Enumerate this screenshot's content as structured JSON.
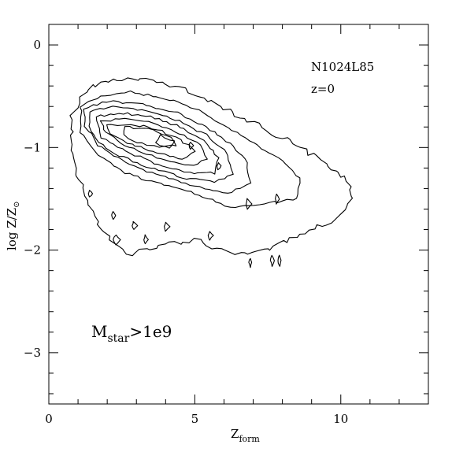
{
  "chart_data": {
    "type": "contour",
    "xlabel_main": "Z",
    "xlabel_sub": "form",
    "ylabel_main": "log  Z/Z",
    "ylabel_symbol": "⊙",
    "xlim": [
      0,
      13
    ],
    "ylim": [
      -3.5,
      0.2
    ],
    "xticks_major": [
      0,
      5,
      10
    ],
    "xtick_labels": [
      "0",
      "5",
      "10"
    ],
    "xticks_minor_step": 1,
    "yticks_major": [
      0,
      -1,
      -2,
      -3
    ],
    "ytick_labels": [
      "0",
      "−1",
      "−2",
      "−3"
    ],
    "yticks_minor_step": 0.2,
    "annotations": {
      "run_name": "N1024L85",
      "redshift": "z=0",
      "mass_main": "M",
      "mass_sub": "star",
      "mass_rest": ">1e9"
    },
    "contours": [
      {
        "level": 1,
        "points": [
          [
            1.0,
            -0.55
          ],
          [
            1.5,
            -0.4
          ],
          [
            2.4,
            -0.33
          ],
          [
            3.5,
            -0.35
          ],
          [
            4.5,
            -0.42
          ],
          [
            5.6,
            -0.55
          ],
          [
            6.7,
            -0.72
          ],
          [
            8.0,
            -0.9
          ],
          [
            9.2,
            -1.1
          ],
          [
            10.2,
            -1.3
          ],
          [
            10.4,
            -1.5
          ],
          [
            9.8,
            -1.7
          ],
          [
            8.6,
            -1.85
          ],
          [
            7.6,
            -1.98
          ],
          [
            6.4,
            -2.05
          ],
          [
            5.0,
            -1.9
          ],
          [
            3.8,
            -1.95
          ],
          [
            2.7,
            -2.05
          ],
          [
            1.8,
            -1.8
          ],
          [
            1.3,
            -1.5
          ],
          [
            0.9,
            -1.2
          ],
          [
            0.75,
            -0.9
          ],
          [
            0.8,
            -0.7
          ]
        ]
      },
      {
        "level": 2,
        "points": [
          [
            1.1,
            -0.6
          ],
          [
            1.8,
            -0.5
          ],
          [
            2.8,
            -0.46
          ],
          [
            4.0,
            -0.52
          ],
          [
            5.0,
            -0.62
          ],
          [
            6.0,
            -0.78
          ],
          [
            7.0,
            -0.96
          ],
          [
            8.0,
            -1.12
          ],
          [
            8.6,
            -1.3
          ],
          [
            8.5,
            -1.5
          ],
          [
            7.4,
            -1.55
          ],
          [
            6.2,
            -1.58
          ],
          [
            5.0,
            -1.45
          ],
          [
            3.8,
            -1.35
          ],
          [
            2.6,
            -1.25
          ],
          [
            1.6,
            -1.05
          ],
          [
            1.1,
            -0.85
          ]
        ]
      },
      {
        "level": 3,
        "points": [
          [
            1.2,
            -0.62
          ],
          [
            2.0,
            -0.55
          ],
          [
            3.2,
            -0.58
          ],
          [
            4.4,
            -0.66
          ],
          [
            5.4,
            -0.8
          ],
          [
            6.2,
            -0.96
          ],
          [
            6.8,
            -1.15
          ],
          [
            6.9,
            -1.35
          ],
          [
            6.1,
            -1.45
          ],
          [
            5.0,
            -1.38
          ],
          [
            3.8,
            -1.28
          ],
          [
            2.6,
            -1.15
          ],
          [
            1.7,
            -0.98
          ],
          [
            1.25,
            -0.8
          ]
        ]
      },
      {
        "level": 4,
        "points": [
          [
            1.4,
            -0.65
          ],
          [
            2.2,
            -0.6
          ],
          [
            3.4,
            -0.64
          ],
          [
            4.5,
            -0.74
          ],
          [
            5.4,
            -0.88
          ],
          [
            6.1,
            -1.05
          ],
          [
            6.3,
            -1.25
          ],
          [
            5.7,
            -1.34
          ],
          [
            4.7,
            -1.3
          ],
          [
            3.5,
            -1.2
          ],
          [
            2.4,
            -1.08
          ],
          [
            1.7,
            -0.94
          ],
          [
            1.4,
            -0.8
          ]
        ]
      },
      {
        "level": 5,
        "points": [
          [
            1.6,
            -0.7
          ],
          [
            2.4,
            -0.66
          ],
          [
            3.5,
            -0.7
          ],
          [
            4.5,
            -0.8
          ],
          [
            5.3,
            -0.94
          ],
          [
            5.8,
            -1.1
          ],
          [
            5.7,
            -1.25
          ],
          [
            4.8,
            -1.25
          ],
          [
            3.6,
            -1.15
          ],
          [
            2.5,
            -1.02
          ],
          [
            1.8,
            -0.9
          ]
        ]
      },
      {
        "level": 6,
        "points": [
          [
            1.8,
            -0.74
          ],
          [
            2.6,
            -0.72
          ],
          [
            3.6,
            -0.76
          ],
          [
            4.5,
            -0.86
          ],
          [
            5.2,
            -0.98
          ],
          [
            5.4,
            -1.12
          ],
          [
            4.8,
            -1.18
          ],
          [
            3.7,
            -1.1
          ],
          [
            2.6,
            -0.98
          ],
          [
            1.95,
            -0.86
          ]
        ]
      },
      {
        "level": 7,
        "points": [
          [
            2.0,
            -0.78
          ],
          [
            2.8,
            -0.77
          ],
          [
            3.7,
            -0.82
          ],
          [
            4.5,
            -0.92
          ],
          [
            5.0,
            -1.03
          ],
          [
            4.6,
            -1.11
          ],
          [
            3.7,
            -1.05
          ],
          [
            2.7,
            -0.95
          ],
          [
            2.1,
            -0.86
          ]
        ]
      },
      {
        "level": 8,
        "points": [
          [
            2.6,
            -0.8
          ],
          [
            3.4,
            -0.82
          ],
          [
            4.2,
            -0.9
          ],
          [
            4.4,
            -0.98
          ],
          [
            3.8,
            -1.0
          ],
          [
            3.0,
            -0.95
          ],
          [
            2.6,
            -0.88
          ]
        ]
      },
      {
        "level": 9,
        "points": [
          [
            3.8,
            -0.88
          ],
          [
            4.3,
            -0.94
          ],
          [
            4.1,
            -1.0
          ],
          [
            3.7,
            -0.96
          ]
        ]
      }
    ],
    "small_contours": [
      {
        "points": [
          [
            1.4,
            -1.42
          ],
          [
            1.5,
            -1.45
          ],
          [
            1.4,
            -1.48
          ],
          [
            1.35,
            -1.45
          ]
        ]
      },
      {
        "points": [
          [
            2.2,
            -1.62
          ],
          [
            2.3,
            -1.66
          ],
          [
            2.2,
            -1.7
          ],
          [
            2.15,
            -1.66
          ]
        ]
      },
      {
        "points": [
          [
            2.3,
            -1.85
          ],
          [
            2.45,
            -1.9
          ],
          [
            2.3,
            -1.95
          ],
          [
            2.2,
            -1.9
          ]
        ]
      },
      {
        "points": [
          [
            2.9,
            -1.72
          ],
          [
            3.05,
            -1.76
          ],
          [
            2.9,
            -1.8
          ],
          [
            2.85,
            -1.76
          ]
        ]
      },
      {
        "points": [
          [
            3.3,
            -1.85
          ],
          [
            3.4,
            -1.9
          ],
          [
            3.3,
            -1.94
          ],
          [
            3.25,
            -1.9
          ]
        ]
      },
      {
        "points": [
          [
            4.0,
            -1.73
          ],
          [
            4.15,
            -1.77
          ],
          [
            4.0,
            -1.82
          ],
          [
            3.95,
            -1.77
          ]
        ]
      },
      {
        "points": [
          [
            5.5,
            -1.82
          ],
          [
            5.65,
            -1.86
          ],
          [
            5.5,
            -1.9
          ],
          [
            5.45,
            -1.86
          ]
        ]
      },
      {
        "points": [
          [
            6.8,
            -1.5
          ],
          [
            6.95,
            -1.55
          ],
          [
            6.8,
            -1.6
          ],
          [
            6.75,
            -1.55
          ]
        ]
      },
      {
        "points": [
          [
            7.8,
            -1.45
          ],
          [
            7.9,
            -1.5
          ],
          [
            7.8,
            -1.55
          ],
          [
            7.75,
            -1.5
          ]
        ]
      },
      {
        "points": [
          [
            6.9,
            -2.08
          ],
          [
            6.96,
            -2.12
          ],
          [
            6.9,
            -2.17
          ],
          [
            6.84,
            -2.12
          ]
        ]
      },
      {
        "points": [
          [
            7.65,
            -2.05
          ],
          [
            7.72,
            -2.1
          ],
          [
            7.65,
            -2.16
          ],
          [
            7.58,
            -2.1
          ]
        ]
      },
      {
        "points": [
          [
            7.9,
            -2.05
          ],
          [
            7.96,
            -2.1
          ],
          [
            7.9,
            -2.16
          ],
          [
            7.84,
            -2.1
          ]
        ]
      },
      {
        "points": [
          [
            4.85,
            -0.95
          ],
          [
            4.95,
            -0.98
          ],
          [
            4.85,
            -1.02
          ],
          [
            4.8,
            -0.98
          ]
        ]
      },
      {
        "points": [
          [
            5.8,
            -1.15
          ],
          [
            5.9,
            -1.18
          ],
          [
            5.8,
            -1.22
          ],
          [
            5.75,
            -1.18
          ]
        ]
      }
    ]
  }
}
